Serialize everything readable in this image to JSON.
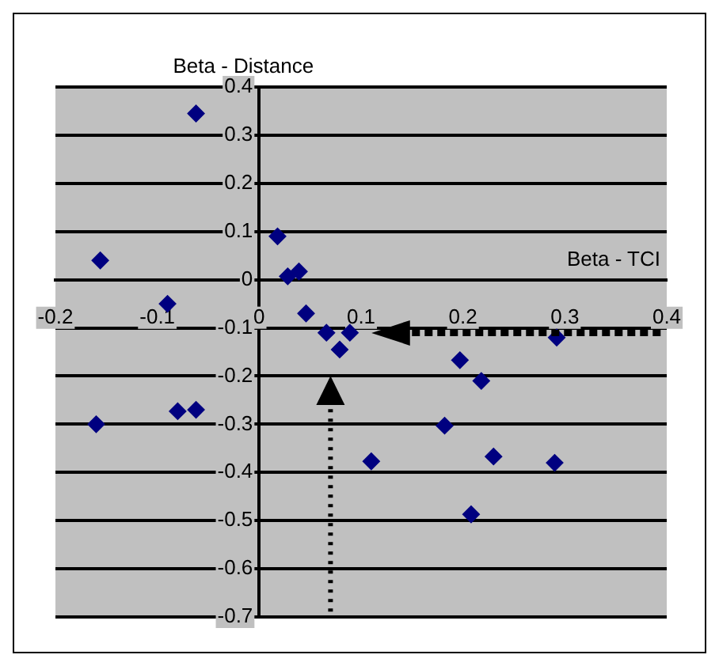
{
  "chart_data": {
    "type": "scatter",
    "xlabel": "Beta - TCI",
    "ylabel": "Beta - Distance",
    "x": [
      -0.156,
      -0.062,
      -0.09,
      0.018,
      0.028,
      0.039,
      0.046,
      0.066,
      0.089,
      0.079,
      -0.16,
      -0.08,
      -0.062,
      0.11,
      0.197,
      0.218,
      0.182,
      0.23,
      0.29,
      0.208,
      0.292
    ],
    "values": [
      0.04,
      0.345,
      -0.05,
      0.09,
      0.007,
      0.017,
      -0.07,
      -0.11,
      -0.11,
      -0.145,
      -0.3,
      -0.273,
      -0.27,
      -0.377,
      -0.167,
      -0.21,
      -0.303,
      -0.367,
      -0.38,
      -0.487,
      -0.12
    ],
    "color": "#000080",
    "marker": "diamond",
    "xlim": [
      -0.2,
      0.4
    ],
    "xticks": [
      -0.2,
      -0.1,
      0,
      0.1,
      0.2,
      0.3,
      0.4
    ],
    "ylim": [
      -0.7,
      0.4
    ],
    "yticks": [
      -0.7,
      -0.6,
      -0.5,
      -0.4,
      -0.3,
      -0.2,
      -0.1,
      0,
      0.1,
      0.2,
      0.3,
      0.4
    ],
    "grid": "y"
  }
}
